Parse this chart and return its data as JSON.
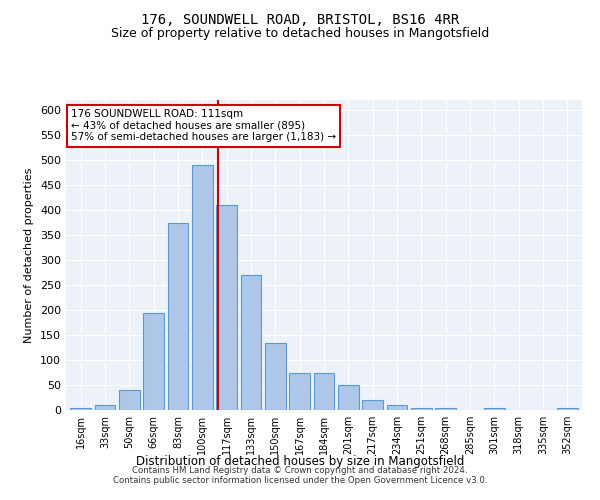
{
  "title1": "176, SOUNDWELL ROAD, BRISTOL, BS16 4RR",
  "title2": "Size of property relative to detached houses in Mangotsfield",
  "xlabel": "Distribution of detached houses by size in Mangotsfield",
  "ylabel": "Number of detached properties",
  "categories": [
    "16sqm",
    "33sqm",
    "50sqm",
    "66sqm",
    "83sqm",
    "100sqm",
    "117sqm",
    "133sqm",
    "150sqm",
    "167sqm",
    "184sqm",
    "201sqm",
    "217sqm",
    "234sqm",
    "251sqm",
    "268sqm",
    "285sqm",
    "301sqm",
    "318sqm",
    "335sqm",
    "352sqm"
  ],
  "values": [
    5,
    10,
    40,
    195,
    375,
    490,
    410,
    270,
    135,
    75,
    75,
    50,
    20,
    10,
    5,
    5,
    0,
    5,
    0,
    0,
    5
  ],
  "bar_color": "#aec6e8",
  "bar_edge_color": "#5b9bd5",
  "property_label": "176 SOUNDWELL ROAD: 111sqm",
  "annotation_line1": "← 43% of detached houses are smaller (895)",
  "annotation_line2": "57% of semi-detached houses are larger (1,183) →",
  "vline_color": "#cc0000",
  "annotation_box_color": "#ffffff",
  "annotation_box_edge": "#cc0000",
  "ylim": [
    0,
    620
  ],
  "yticks": [
    0,
    50,
    100,
    150,
    200,
    250,
    300,
    350,
    400,
    450,
    500,
    550,
    600
  ],
  "background_color": "#edf2f9",
  "footer1": "Contains HM Land Registry data © Crown copyright and database right 2024.",
  "footer2": "Contains public sector information licensed under the Open Government Licence v3.0."
}
